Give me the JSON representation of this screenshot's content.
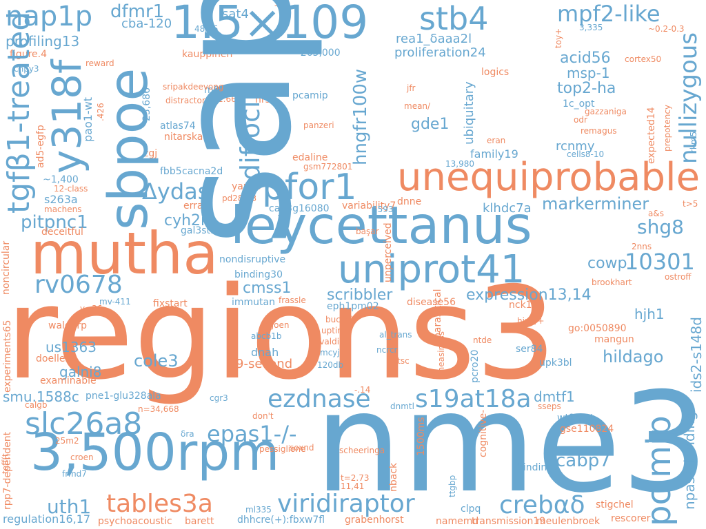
{
  "colors": {
    "blue": "#67a7d0",
    "orange": "#ef8a62"
  },
  "words": [
    {
      "text": "regions3",
      "c": "orange"
    },
    {
      "text": "sap47",
      "c": "blue"
    },
    {
      "text": "nme3",
      "c": "blue"
    },
    {
      "text": "1.5×109",
      "c": "blue"
    },
    {
      "text": "3,500rpm",
      "c": "blue"
    },
    {
      "text": "mutha",
      "c": "orange"
    },
    {
      "text": "leycettanus",
      "c": "blue"
    },
    {
      "text": "sbpoe",
      "c": "blue"
    },
    {
      "text": "unequiprobable",
      "c": "orange"
    },
    {
      "text": "uniprot41",
      "c": "blue"
    },
    {
      "text": "pfor1",
      "c": "blue"
    },
    {
      "text": "y318f",
      "c": "blue"
    },
    {
      "text": "stb4",
      "c": "blue"
    },
    {
      "text": "nap1p",
      "c": "blue"
    },
    {
      "text": "rv0678",
      "c": "blue"
    },
    {
      "text": "tgfβ1-treated",
      "c": "blue"
    },
    {
      "text": "slc26a8",
      "c": "blue"
    },
    {
      "text": "pcimip",
      "c": "blue"
    },
    {
      "text": "viridiraptor",
      "c": "blue"
    },
    {
      "text": "ezdnase",
      "c": "blue"
    },
    {
      "text": "s19at18a",
      "c": "blue"
    },
    {
      "text": "diffocin",
      "c": "blue"
    },
    {
      "text": "Δydas",
      "c": "blue"
    },
    {
      "text": "mpf2-like",
      "c": "blue"
    },
    {
      "text": "tables3a",
      "c": "orange"
    },
    {
      "text": "crebαδ",
      "c": "blue"
    },
    {
      "text": "10301",
      "c": "blue"
    },
    {
      "text": "epas1-/-",
      "c": "blue"
    },
    {
      "text": "nullizygous",
      "c": "blue"
    },
    {
      "text": "hngfr100w",
      "c": "blue"
    },
    {
      "text": "markerminer",
      "c": "blue"
    },
    {
      "text": "shg8",
      "c": "blue"
    },
    {
      "text": "dfmr1",
      "c": "blue"
    },
    {
      "text": "pitpnc1",
      "c": "blue"
    },
    {
      "text": "uth1",
      "c": "blue"
    },
    {
      "text": "cabp7",
      "c": "blue"
    },
    {
      "text": "npas4-binding",
      "c": "blue"
    },
    {
      "text": "cole3",
      "c": "blue"
    },
    {
      "text": "hildago",
      "c": "blue"
    },
    {
      "text": "expression13,14",
      "c": "blue"
    },
    {
      "text": "scribbler",
      "c": "blue"
    },
    {
      "text": "acid56",
      "c": "blue"
    },
    {
      "text": "top2-ha",
      "c": "blue"
    },
    {
      "text": "cyh2r",
      "c": "blue"
    },
    {
      "text": "cmss1",
      "c": "blue"
    },
    {
      "text": "gde1",
      "c": "blue"
    },
    {
      "text": "msp-1",
      "c": "blue"
    },
    {
      "text": "cowp",
      "c": "blue"
    },
    {
      "text": "us1363",
      "c": "blue"
    },
    {
      "text": "smu.1588c",
      "c": "blue"
    },
    {
      "text": "galni8",
      "c": "blue"
    },
    {
      "text": "dmtf1",
      "c": "blue"
    },
    {
      "text": "hjh1",
      "c": "blue"
    },
    {
      "text": "cba-120",
      "c": "blue"
    },
    {
      "text": "sat4",
      "c": "blue"
    },
    {
      "text": "profiling13",
      "c": "blue"
    },
    {
      "text": "rea1_δaaa2l",
      "c": "blue"
    },
    {
      "text": "proliferation24",
      "c": "blue"
    },
    {
      "text": "klhdc7a",
      "c": "blue"
    },
    {
      "text": "family19",
      "c": "blue"
    },
    {
      "text": "rcnmy",
      "c": "blue"
    },
    {
      "text": "ubiquitary",
      "c": "blue"
    },
    {
      "text": "atlas74",
      "c": "blue"
    },
    {
      "text": "pao1-wt",
      "c": "blue"
    },
    {
      "text": "s263a",
      "c": "blue"
    },
    {
      "text": "9-second",
      "c": "orange"
    },
    {
      "text": "dnah",
      "c": "blue"
    },
    {
      "text": "ids2-s148d",
      "c": "blue"
    },
    {
      "text": "ca03g16080",
      "c": "blue"
    },
    {
      "text": "gal3st1",
      "c": "blue"
    },
    {
      "text": "binding30",
      "c": "blue"
    },
    {
      "text": "nondisruptive",
      "c": "blue"
    },
    {
      "text": "immutan",
      "c": "blue"
    },
    {
      "text": "fixstart",
      "c": "orange"
    },
    {
      "text": "eph1pm02",
      "c": "blue"
    },
    {
      "text": "disease56",
      "c": "orange"
    },
    {
      "text": "nck1-/-",
      "c": "orange"
    },
    {
      "text": "go:0050890",
      "c": "orange"
    },
    {
      "text": "mangun",
      "c": "orange"
    },
    {
      "text": "ser84",
      "c": "blue"
    },
    {
      "text": "upk3bl",
      "c": "blue"
    },
    {
      "text": "pne1-glu328ala",
      "c": "blue"
    },
    {
      "text": "wt1mut",
      "c": "blue"
    },
    {
      "text": "gse110824",
      "c": "orange"
    },
    {
      "text": "binding7",
      "c": "blue"
    },
    {
      "text": "stigchel",
      "c": "orange"
    },
    {
      "text": "rescorer",
      "c": "orange"
    },
    {
      "text": "transmission19",
      "c": "orange"
    },
    {
      "text": "meulenbroek",
      "c": "orange"
    },
    {
      "text": "namemd",
      "c": "orange"
    },
    {
      "text": "grabenhorst",
      "c": "orange"
    },
    {
      "text": "dhhcre(+):fbxw7fl",
      "c": "blue"
    },
    {
      "text": "ml335",
      "c": "blue"
    },
    {
      "text": "barett",
      "c": "orange"
    },
    {
      "text": "psychoacoustic",
      "c": "orange"
    },
    {
      "text": "regulation16,17",
      "c": "blue"
    },
    {
      "text": "clpq",
      "c": "blue"
    },
    {
      "text": "doeller",
      "c": "orange"
    },
    {
      "text": "examinable",
      "c": "orange"
    },
    {
      "text": "waldorp",
      "c": "orange"
    },
    {
      "text": "mv-411",
      "c": "blue"
    },
    {
      "text": "y=36",
      "c": "orange"
    },
    {
      "text": "deceitful",
      "c": "orange"
    },
    {
      "text": "errard",
      "c": "orange"
    },
    {
      "text": "machens",
      "c": "orange"
    },
    {
      "text": "12-class",
      "c": "orange"
    },
    {
      "text": "~1,400",
      "c": "blue"
    },
    {
      "text": "fbb5",
      "c": "blue"
    },
    {
      "text": "cacna2d",
      "c": "blue"
    },
    {
      "text": "yantis",
      "c": "orange"
    },
    {
      "text": "pd28-33",
      "c": "orange"
    },
    {
      "text": "zgj",
      "c": "orange"
    },
    {
      "text": "nitarska",
      "c": "orange"
    },
    {
      "text": "m005",
      "c": "blue"
    },
    {
      "text": "1.661",
      "c": "orange"
    },
    {
      "text": "hrsn",
      "c": "orange"
    },
    {
      "text": "pcamip",
      "c": "blue"
    },
    {
      "text": "edaline",
      "c": "orange"
    },
    {
      "text": "stdl",
      "c": "blue"
    },
    {
      "text": "~265,000",
      "c": "blue"
    },
    {
      "text": "kauppinen",
      "c": "orange"
    },
    {
      "text": "figure.4",
      "c": "orange"
    },
    {
      "text": "cnpy3",
      "c": "blue"
    },
    {
      "text": "reward",
      "c": "orange"
    },
    {
      "text": "48/65",
      "c": "blue"
    },
    {
      "text": "-7.3",
      "c": "orange"
    },
    {
      "text": "3,335",
      "c": "blue"
    },
    {
      "text": "~0.2-0.3",
      "c": "orange"
    },
    {
      "text": "cortex50",
      "c": "orange"
    },
    {
      "text": "toy+",
      "c": "orange"
    },
    {
      "text": "logics",
      "c": "orange"
    },
    {
      "text": "jfr",
      "c": "orange"
    },
    {
      "text": "mean/",
      "c": "orange"
    },
    {
      "text": "1c_opt",
      "c": "blue"
    },
    {
      "text": "gazzaniga",
      "c": "orange"
    },
    {
      "text": "odr",
      "c": "orange"
    },
    {
      "text": "remagus",
      "c": "orange"
    },
    {
      "text": "eran",
      "c": "orange"
    },
    {
      "text": "cells8-10",
      "c": "blue"
    },
    {
      "text": "13,980",
      "c": "blue"
    },
    {
      "text": "gsm772801",
      "c": "orange"
    },
    {
      "text": "panzeri",
      "c": "orange"
    },
    {
      "text": "dnne",
      "c": "orange"
    },
    {
      "text": "variability7",
      "c": "orange"
    },
    {
      "text": "5593",
      "c": "blue"
    },
    {
      "text": "başar",
      "c": "orange"
    },
    {
      "text": "t>5",
      "c": "orange"
    },
    {
      "text": "a&s",
      "c": "orange"
    },
    {
      "text": "2nns",
      "c": "orange"
    },
    {
      "text": "brookhart",
      "c": "orange"
    },
    {
      "text": "ostroff",
      "c": "orange"
    },
    {
      "text": "frassle",
      "c": "orange"
    },
    {
      "text": "buchel",
      "c": "orange"
    },
    {
      "text": "uptime",
      "c": "orange"
    },
    {
      "text": "ivaldi",
      "c": "orange"
    },
    {
      "text": "mcyj",
      "c": "blue"
    },
    {
      "text": "120db",
      "c": "blue"
    },
    {
      "text": "viljoen",
      "c": "orange"
    },
    {
      "text": "abcb1b",
      "c": "blue"
    },
    {
      "text": "al_trans",
      "c": "blue"
    },
    {
      "text": "ncrcr",
      "c": "blue"
    },
    {
      "text": "Δtsc",
      "c": "orange"
    },
    {
      "text": "hipk/+",
      "c": "orange"
    },
    {
      "text": "ntde",
      "c": "orange"
    },
    {
      "text": "-.14",
      "c": "orange"
    },
    {
      "text": "dnmtl",
      "c": "blue"
    },
    {
      "text": "sseps",
      "c": "orange"
    },
    {
      "text": "cgr3",
      "c": "blue"
    },
    {
      "text": "don't",
      "c": "orange"
    },
    {
      "text": "pessiglione",
      "c": "orange"
    },
    {
      "text": "soxnd",
      "c": "orange"
    },
    {
      "text": "scheeringa",
      "c": "orange"
    },
    {
      "text": "t=2.73",
      "c": "orange"
    },
    {
      "text": "11,41",
      "c": "orange"
    },
    {
      "text": "croen",
      "c": "orange"
    },
    {
      "text": "frmd7",
      "c": "blue"
    },
    {
      "text": "25m2",
      "c": "orange"
    },
    {
      "text": "n=34,668",
      "c": "orange"
    },
    {
      "text": "δra",
      "c": "blue"
    },
    {
      "text": "calgb",
      "c": "orange"
    },
    {
      "text": "teff(t",
      "c": "orange"
    },
    {
      "text": "23,686",
      "c": "blue"
    },
    {
      "text": ".426",
      "c": "orange"
    },
    {
      "text": "ad5-egfp",
      "c": "orange"
    },
    {
      "text": "noncircular",
      "c": "orange"
    },
    {
      "text": "experiments65",
      "c": "orange"
    },
    {
      "text": "rpp7-dependent",
      "c": "orange"
    },
    {
      "text": "unperceived",
      "c": "orange"
    },
    {
      "text": "parasitical",
      "c": "orange"
    },
    {
      "text": "uneasiness",
      "c": "orange"
    },
    {
      "text": "pcro20",
      "c": "blue"
    },
    {
      "text": "nback",
      "c": "orange"
    },
    {
      "text": "1500ms",
      "c": "orange"
    },
    {
      "text": "cognitive-",
      "c": "orange"
    },
    {
      "text": "ttgbp",
      "c": "blue"
    },
    {
      "text": "expected14",
      "c": "orange"
    },
    {
      "text": "prepotency",
      "c": "orange"
    },
    {
      "text": "rkm5",
      "c": "blue"
    },
    {
      "text": "sripakdeevong",
      "c": "orange"
    },
    {
      "text": "distractor",
      "c": "orange"
    }
  ]
}
